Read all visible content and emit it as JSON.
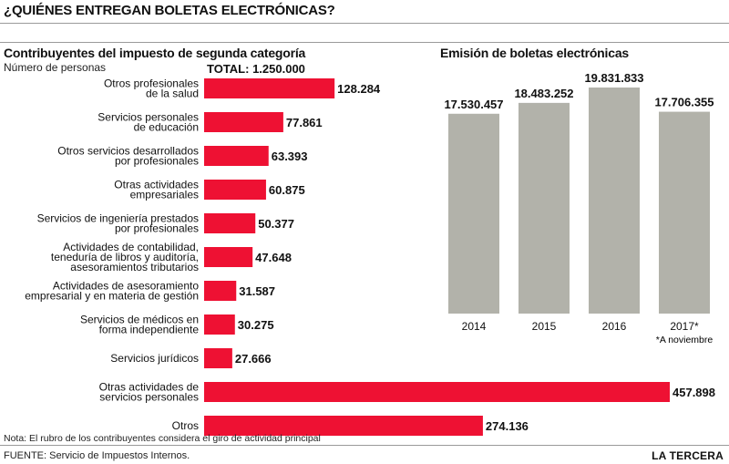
{
  "title": "¿QUIÉNES ENTREGAN BOLETAS ELECTRÓNICAS?",
  "chart_data": [
    {
      "type": "bar",
      "orientation": "horizontal",
      "title": "Contribuyentes del impuesto de segunda categoría",
      "subtitle": "Número de personas",
      "total_label": "TOTAL: 1.250.000",
      "categories": [
        [
          "Otros profesionales",
          "de la salud"
        ],
        [
          "Servicios personales",
          "de educación"
        ],
        [
          "Otros servicios desarrollados",
          "por profesionales"
        ],
        [
          "Otras actividades",
          "empresariales"
        ],
        [
          "Servicios de ingeniería prestados",
          "por profesionales"
        ],
        [
          "Actividades de contabilidad,",
          "teneduría de libros y auditoría,",
          "asesoramientos tributarios"
        ],
        [
          "Actividades de asesoramiento",
          "empresarial y en materia de gestión"
        ],
        [
          "Servicios de médicos en",
          "forma independiente"
        ],
        [
          "Servicios jurídicos"
        ],
        [
          "Otras actividades de",
          "servicios personales"
        ],
        [
          "Otros"
        ]
      ],
      "values": [
        128284,
        77861,
        63393,
        60875,
        50377,
        47648,
        31587,
        30275,
        27666,
        457898,
        274136
      ],
      "value_labels": [
        "128.284",
        "77.861",
        "63.393",
        "60.875",
        "50.377",
        "47.648",
        "31.587",
        "30.275",
        "27.666",
        "457.898",
        "274.136"
      ],
      "color": "#ee1133",
      "note": "Nota: El rubro de los contribuyentes considera el giro de actividad principal"
    },
    {
      "type": "bar",
      "orientation": "vertical",
      "title": "Emisión de boletas electrónicas",
      "categories": [
        "2014",
        "2015",
        "2016",
        "2017*"
      ],
      "values": [
        17530457,
        18483252,
        19831833,
        17706355
      ],
      "value_labels": [
        "17.530.457",
        "18.483.252",
        "19.831.833",
        "17.706.355"
      ],
      "color": "#b2b2aa",
      "footnote": "*A noviembre"
    }
  ],
  "footer": {
    "source": "FUENTE: Servicio de Impuestos Internos.",
    "brand": "LA TERCERA"
  }
}
